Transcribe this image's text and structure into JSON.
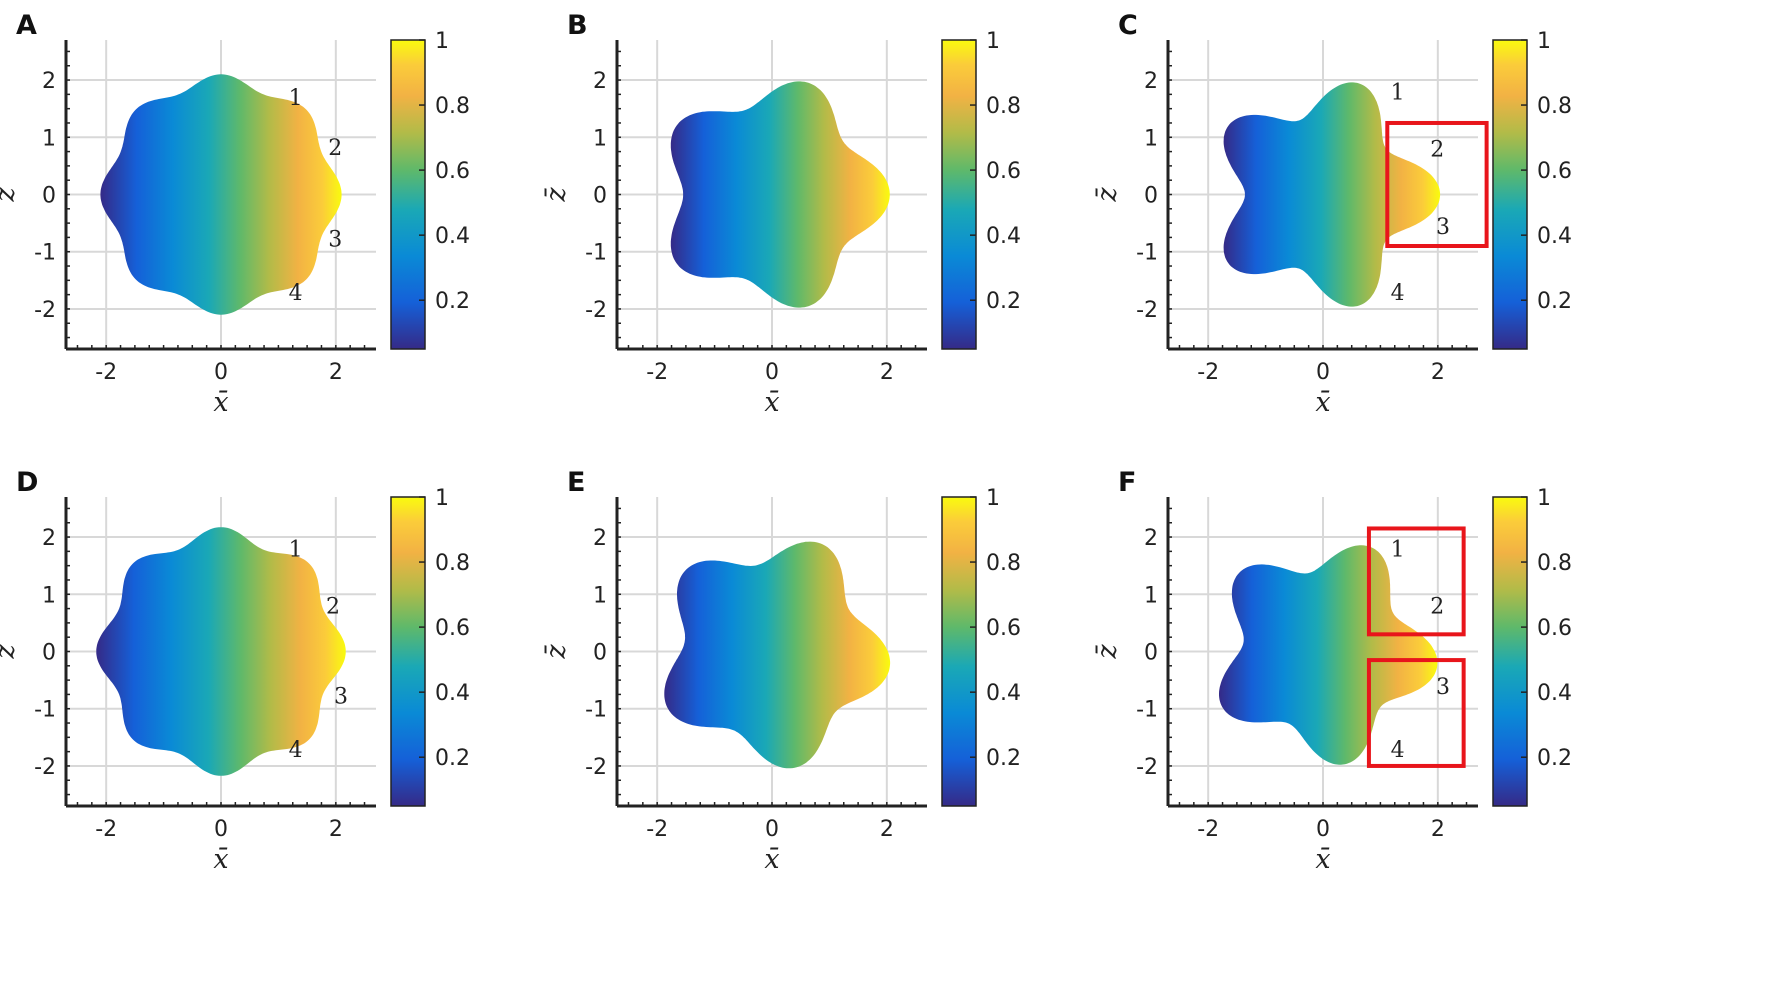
{
  "colorbar": {
    "ticks": [
      "0.2",
      "0.4",
      "0.6",
      "0.8",
      "1"
    ],
    "tick_values": [
      0.2,
      0.4,
      0.6,
      0.8,
      1
    ],
    "range": [
      0.05,
      1
    ],
    "colormap": "parula"
  },
  "axes": {
    "xlabel": "x̄",
    "ylabel": "z̄",
    "xticks": [
      "-2",
      "0",
      "2"
    ],
    "yticks": [
      "-2",
      "-1",
      "0",
      "1",
      "2"
    ],
    "xlim": [
      -2.7,
      2.7
    ],
    "ylim": [
      -2.7,
      2.7
    ],
    "grid": true
  },
  "chart_data": [
    {
      "label": "A",
      "type": "heatmap",
      "lobes": 8,
      "lobe_amplitude": 0.05,
      "base_radius": 2.0,
      "phase": 0.0,
      "annotations": [
        {
          "text": "1",
          "x": 1.3,
          "z": 1.7
        },
        {
          "text": "2",
          "x": 1.99,
          "z": 0.83
        },
        {
          "text": "3",
          "x": 1.99,
          "z": -0.77
        },
        {
          "text": "4",
          "x": 1.3,
          "z": -1.7
        }
      ],
      "highlight_boxes": []
    },
    {
      "label": "B",
      "type": "heatmap",
      "lobes": 5,
      "lobe_amplitude": 0.14,
      "base_radius": 1.8,
      "phase": 0.0,
      "annotations": [],
      "highlight_boxes": []
    },
    {
      "label": "C",
      "type": "heatmap",
      "lobes": 5,
      "lobe_amplitude": 0.2,
      "base_radius": 1.7,
      "phase": 0.0,
      "annotations": [
        {
          "text": "1",
          "x": 1.3,
          "z": 1.8
        },
        {
          "text": "2",
          "x": 1.99,
          "z": 0.8
        },
        {
          "text": "3",
          "x": 2.09,
          "z": -0.55
        },
        {
          "text": "4",
          "x": 1.3,
          "z": -1.7
        }
      ],
      "highlight_boxes": [
        {
          "x0": 1.12,
          "x1": 2.85,
          "z0": -0.9,
          "z1": 1.25
        }
      ]
    },
    {
      "label": "D",
      "type": "heatmap",
      "lobes": 8,
      "lobe_amplitude": 0.06,
      "base_radius": 2.05,
      "phase": 0.0,
      "annotations": [
        {
          "text": "1",
          "x": 1.3,
          "z": 1.8
        },
        {
          "text": "2",
          "x": 1.95,
          "z": 0.8
        },
        {
          "text": "3",
          "x": 2.09,
          "z": -0.77
        },
        {
          "text": "4",
          "x": 1.3,
          "z": -1.7
        }
      ],
      "highlight_boxes": []
    },
    {
      "label": "E",
      "type": "heatmap",
      "lobes": 5,
      "lobe_amplitude": 0.15,
      "base_radius": 1.8,
      "phase": 0.6283,
      "annotations": [],
      "highlight_boxes": []
    },
    {
      "label": "F",
      "type": "heatmap",
      "lobes": 5,
      "lobe_amplitude": 0.18,
      "base_radius": 1.7,
      "phase": 0.6283,
      "annotations": [
        {
          "text": "1",
          "x": 1.3,
          "z": 1.8
        },
        {
          "text": "2",
          "x": 1.99,
          "z": 0.8
        },
        {
          "text": "3",
          "x": 2.09,
          "z": -0.6
        },
        {
          "text": "4",
          "x": 1.3,
          "z": -1.7
        }
      ],
      "highlight_boxes": [
        {
          "x0": 0.8,
          "x1": 2.45,
          "z0": 0.3,
          "z1": 2.15
        },
        {
          "x0": 0.8,
          "x1": 2.45,
          "z0": -2.0,
          "z1": -0.15
        }
      ]
    }
  ]
}
